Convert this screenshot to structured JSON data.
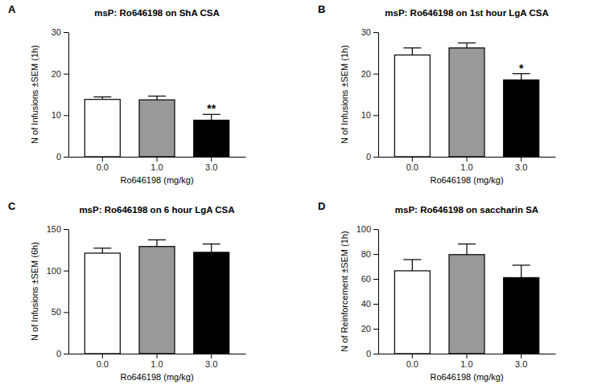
{
  "chart_data": [
    {
      "type": "bar",
      "panel_label": "A",
      "title": "msP: Ro646198 on ShA CSA",
      "x_label": "Ro646198 (mg/kg)",
      "y_label": "N of Infusions ±SEM (1h)",
      "categories": [
        "0.0",
        "1.0",
        "3.0"
      ],
      "values": [
        13.8,
        13.7,
        8.8
      ],
      "errors": [
        0.6,
        0.9,
        1.4
      ],
      "colors": [
        "#ffffff",
        "#999999",
        "#000000"
      ],
      "ylim": [
        0,
        30
      ],
      "yticks": [
        0,
        10,
        20,
        30
      ],
      "annotations": [
        {
          "text": "**",
          "index": 2
        }
      ]
    },
    {
      "type": "bar",
      "panel_label": "B",
      "title": "msP: Ro646198 on 1st hour LgA CSA",
      "x_label": "Ro646198 (mg/kg)",
      "y_label": "N of Infusions ±SEM (1h)",
      "categories": [
        "0.0",
        "1.0",
        "3.0"
      ],
      "values": [
        24.5,
        26.2,
        18.5
      ],
      "errors": [
        1.7,
        1.2,
        1.5
      ],
      "colors": [
        "#ffffff",
        "#999999",
        "#000000"
      ],
      "ylim": [
        0,
        30
      ],
      "yticks": [
        0,
        10,
        20,
        30
      ],
      "annotations": [
        {
          "text": "*",
          "index": 2
        }
      ]
    },
    {
      "type": "bar",
      "panel_label": "C",
      "title": "msP: Ro646198 on 6 hour LgA CSA",
      "x_label": "Ro646198 (mg/kg)",
      "y_label": "N of Infusions ±SEM (6h)",
      "categories": [
        "0.0",
        "1.0",
        "3.0"
      ],
      "values": [
        121,
        129,
        122
      ],
      "errors": [
        6,
        8,
        10
      ],
      "colors": [
        "#ffffff",
        "#999999",
        "#000000"
      ],
      "ylim": [
        0,
        150
      ],
      "yticks": [
        0,
        50,
        100,
        150
      ]
    },
    {
      "type": "bar",
      "panel_label": "D",
      "title": "msP: Ro646198 on saccharin SA",
      "x_label": "Ro646198 (mg/kg)",
      "y_label": "N of Reinforcement ±SEM (1h)",
      "categories": [
        "0.0",
        "1.0",
        "3.0"
      ],
      "values": [
        66.5,
        79.5,
        61
      ],
      "errors": [
        9,
        8.5,
        10
      ],
      "colors": [
        "#ffffff",
        "#999999",
        "#000000"
      ],
      "ylim": [
        0,
        100
      ],
      "yticks": [
        0,
        20,
        40,
        60,
        80,
        100
      ]
    }
  ]
}
